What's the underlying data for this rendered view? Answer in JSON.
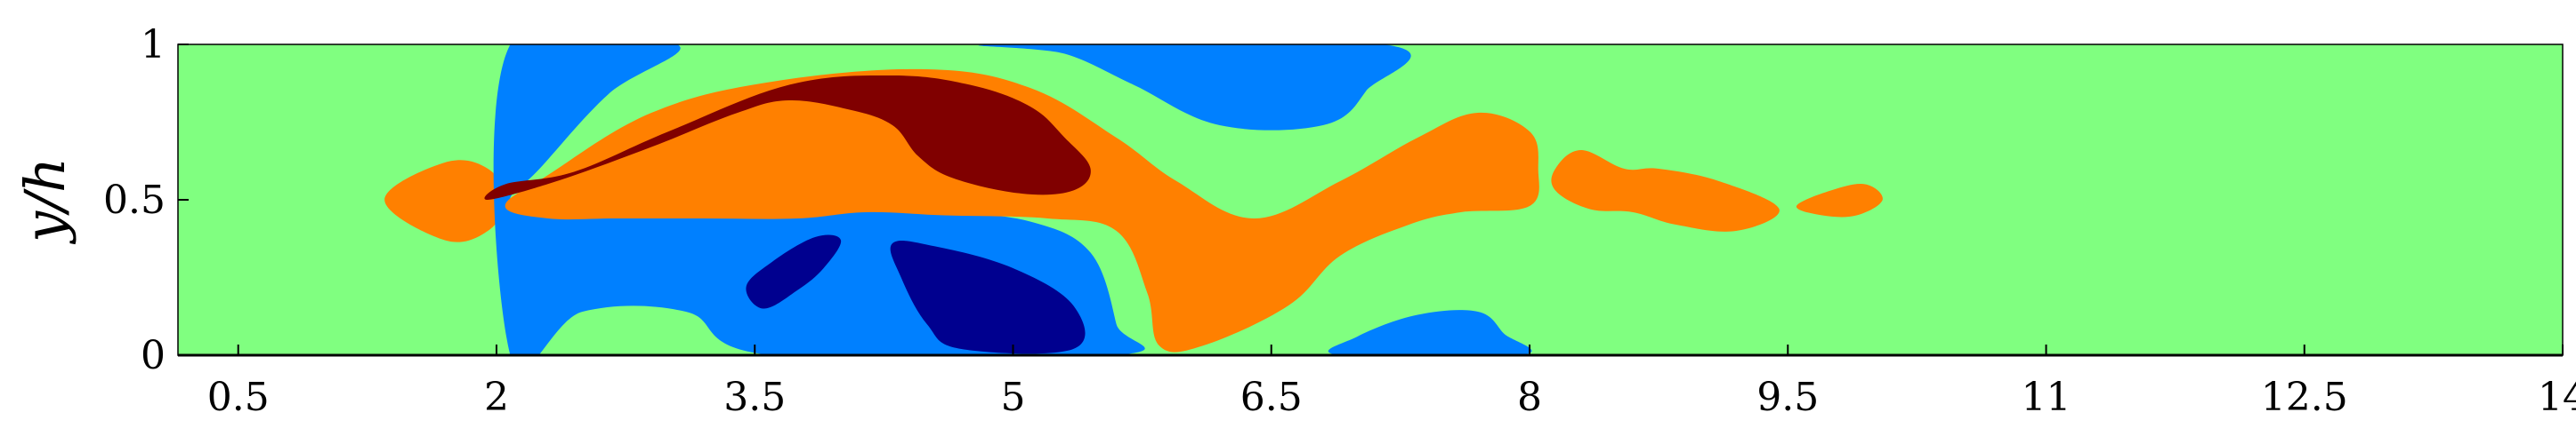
{
  "chart_data": {
    "type": "heatmap",
    "title": "",
    "xlabel": "",
    "ylabel": "y/h",
    "xlim": [
      0.15,
      14
    ],
    "ylim": [
      0,
      1
    ],
    "xticks": [
      0.5,
      2,
      3.5,
      5,
      6.5,
      8,
      9.5,
      11,
      12.5,
      14
    ],
    "xtick_labels": [
      "0.5",
      "2",
      "3.5",
      "5",
      "6.5",
      "8",
      "9.5",
      "11",
      "12.5",
      "14"
    ],
    "yticks": [
      0,
      0.5,
      1
    ],
    "ytick_labels": [
      "0",
      "0.5",
      "1"
    ],
    "colorscale": "jet",
    "level_colors": {
      "strong_negative": "#00008f",
      "negative": "#0080ff",
      "neutral": "#80ff80",
      "positive": "#ff8000",
      "strong_positive": "#800000"
    },
    "regions": [
      {
        "level": "positive",
        "points": [
          [
            1.35,
            0.5
          ],
          [
            1.7,
            0.62
          ],
          [
            1.95,
            0.6
          ],
          [
            2.05,
            0.5
          ],
          [
            1.95,
            0.4
          ],
          [
            1.7,
            0.37
          ]
        ]
      },
      {
        "level": "negative",
        "points": [
          [
            2.08,
            0.0
          ],
          [
            2.08,
            1.0
          ],
          [
            3.05,
            1.0
          ],
          [
            2.65,
            0.84
          ],
          [
            2.25,
            0.6
          ],
          [
            2.08,
            0.5
          ],
          [
            2.3,
            0.5
          ],
          [
            2.8,
            0.48
          ],
          [
            3.3,
            0.48
          ],
          [
            3.55,
            0.52
          ],
          [
            4.0,
            0.48
          ],
          [
            4.6,
            0.46
          ],
          [
            5.1,
            0.43
          ],
          [
            5.45,
            0.33
          ],
          [
            5.6,
            0.1
          ],
          [
            5.6,
            0.0
          ],
          [
            3.6,
            0.0
          ],
          [
            3.1,
            0.14
          ],
          [
            2.5,
            0.14
          ]
        ]
      },
      {
        "level": "negative",
        "points": [
          [
            4.9,
            1.0
          ],
          [
            5.3,
            0.97
          ],
          [
            5.7,
            0.87
          ],
          [
            6.2,
            0.74
          ],
          [
            6.8,
            0.74
          ],
          [
            7.05,
            0.85
          ],
          [
            7.15,
            1.0
          ]
        ]
      },
      {
        "level": "negative",
        "points": [
          [
            6.9,
            0.0
          ],
          [
            7.0,
            0.06
          ],
          [
            7.35,
            0.13
          ],
          [
            7.7,
            0.14
          ],
          [
            7.85,
            0.07
          ],
          [
            7.95,
            0.0
          ]
        ]
      },
      {
        "level": "strong_negative",
        "points": [
          [
            3.45,
            0.22
          ],
          [
            3.6,
            0.3
          ],
          [
            3.85,
            0.38
          ],
          [
            4.0,
            0.37
          ],
          [
            3.9,
            0.28
          ],
          [
            3.75,
            0.21
          ],
          [
            3.55,
            0.15
          ]
        ]
      },
      {
        "level": "strong_negative",
        "points": [
          [
            4.3,
            0.36
          ],
          [
            4.55,
            0.35
          ],
          [
            5.0,
            0.28
          ],
          [
            5.35,
            0.16
          ],
          [
            5.35,
            0.02
          ],
          [
            4.7,
            0.02
          ],
          [
            4.5,
            0.1
          ],
          [
            4.35,
            0.25
          ]
        ]
      },
      {
        "level": "positive",
        "points": [
          [
            2.05,
            0.48
          ],
          [
            2.3,
            0.58
          ],
          [
            2.9,
            0.78
          ],
          [
            3.6,
            0.88
          ],
          [
            4.5,
            0.92
          ],
          [
            5.1,
            0.86
          ],
          [
            5.6,
            0.7
          ],
          [
            5.95,
            0.56
          ],
          [
            6.4,
            0.44
          ],
          [
            6.9,
            0.56
          ],
          [
            7.35,
            0.7
          ],
          [
            7.7,
            0.78
          ],
          [
            8.0,
            0.72
          ],
          [
            8.05,
            0.6
          ],
          [
            8.0,
            0.48
          ],
          [
            7.6,
            0.46
          ],
          [
            7.3,
            0.42
          ],
          [
            6.9,
            0.32
          ],
          [
            6.6,
            0.16
          ],
          [
            6.1,
            0.03
          ],
          [
            5.85,
            0.03
          ],
          [
            5.78,
            0.2
          ],
          [
            5.6,
            0.4
          ],
          [
            5.2,
            0.44
          ],
          [
            4.6,
            0.45
          ],
          [
            4.15,
            0.46
          ],
          [
            3.75,
            0.44
          ],
          [
            3.2,
            0.44
          ],
          [
            2.7,
            0.44
          ],
          [
            2.3,
            0.44
          ]
        ]
      },
      {
        "level": "positive",
        "points": [
          [
            8.15,
            0.6
          ],
          [
            8.3,
            0.66
          ],
          [
            8.55,
            0.6
          ],
          [
            8.75,
            0.6
          ],
          [
            9.1,
            0.56
          ],
          [
            9.45,
            0.47
          ],
          [
            9.2,
            0.4
          ],
          [
            8.85,
            0.42
          ],
          [
            8.6,
            0.46
          ],
          [
            8.35,
            0.47
          ],
          [
            8.15,
            0.53
          ]
        ]
      },
      {
        "level": "positive",
        "points": [
          [
            9.55,
            0.48
          ],
          [
            9.75,
            0.53
          ],
          [
            9.95,
            0.55
          ],
          [
            10.05,
            0.5
          ],
          [
            9.9,
            0.45
          ],
          [
            9.7,
            0.45
          ]
        ]
      },
      {
        "level": "strong_positive",
        "points": [
          [
            1.95,
            0.5
          ],
          [
            2.35,
            0.56
          ],
          [
            2.9,
            0.67
          ],
          [
            3.4,
            0.78
          ],
          [
            3.7,
            0.82
          ],
          [
            4.05,
            0.79
          ],
          [
            4.3,
            0.74
          ],
          [
            4.45,
            0.64
          ],
          [
            4.65,
            0.57
          ],
          [
            5.05,
            0.52
          ],
          [
            5.35,
            0.53
          ],
          [
            5.45,
            0.6
          ],
          [
            5.3,
            0.7
          ],
          [
            5.1,
            0.8
          ],
          [
            4.75,
            0.87
          ],
          [
            4.3,
            0.9
          ],
          [
            3.7,
            0.87
          ],
          [
            3.0,
            0.72
          ],
          [
            2.45,
            0.59
          ],
          [
            2.05,
            0.55
          ]
        ]
      }
    ]
  }
}
